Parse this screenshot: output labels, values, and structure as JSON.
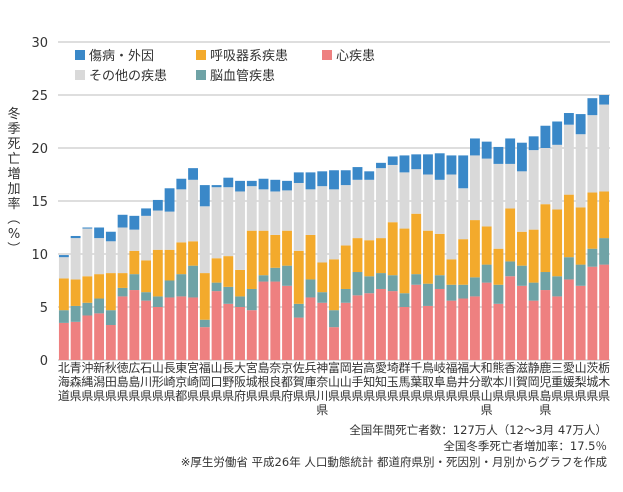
{
  "chart_data": {
    "type": "bar",
    "stacked": true,
    "ylabel": "冬季死亡増加率（%）",
    "ylim": [
      0,
      30
    ],
    "yticks": [
      0,
      5,
      10,
      15,
      20,
      25,
      30
    ],
    "grid": true,
    "legend_position": "top-left",
    "categories": [
      "北海道",
      "青森県",
      "沖縄県",
      "新潟県",
      "秋田県",
      "徳島県",
      "広島県",
      "石川県",
      "山形県",
      "長崎県",
      "東京都",
      "宮崎県",
      "福岡県",
      "山口県",
      "長野県",
      "大阪府",
      "宮城県",
      "島根県",
      "奈良県",
      "京都府",
      "佐賀県",
      "兵庫県",
      "神奈川県",
      "富山県",
      "岡山県",
      "岩手県",
      "高知県",
      "愛知県",
      "埼玉県",
      "群馬県",
      "千葉県",
      "鳥取県",
      "岐阜県",
      "福島県",
      "福井県",
      "大分県",
      "和歌山県",
      "熊本県",
      "香川県",
      "滋賀県",
      "静岡県",
      "鹿児島県",
      "三重県",
      "愛媛県",
      "山梨県",
      "茨城県",
      "栃木県"
    ],
    "series": [
      {
        "name": "心疾患",
        "color": "#ee8080",
        "values": [
          3.5,
          3.6,
          4.2,
          4.4,
          3.3,
          6.0,
          6.6,
          5.6,
          5.0,
          5.9,
          6.0,
          5.9,
          3.1,
          6.5,
          5.3,
          5.0,
          4.7,
          7.4,
          7.4,
          7.0,
          4.0,
          5.9,
          5.4,
          3.1,
          5.4,
          6.1,
          6.3,
          6.7,
          6.5,
          5.0,
          7.1,
          5.1,
          6.7,
          5.6,
          5.8,
          6.0,
          7.3,
          5.3,
          7.9,
          7.0,
          5.6,
          6.6,
          6.0,
          7.6,
          7.0,
          8.8,
          9.0
        ]
      },
      {
        "name": "脳血管疾患",
        "color": "#6fa3a6",
        "values": [
          1.2,
          1.5,
          1.2,
          1.4,
          1.4,
          0.8,
          1.5,
          0.8,
          1.0,
          1.6,
          2.1,
          3.0,
          0.7,
          0.8,
          1.6,
          1.0,
          2.0,
          0.6,
          1.3,
          1.9,
          1.3,
          1.7,
          1.0,
          1.6,
          1.3,
          2.2,
          1.6,
          1.5,
          1.5,
          1.3,
          1.0,
          2.1,
          1.3,
          1.5,
          1.3,
          1.8,
          1.7,
          1.8,
          1.4,
          1.9,
          1.7,
          1.7,
          1.9,
          2.1,
          2.0,
          1.7,
          2.5
        ]
      },
      {
        "name": "呼吸器系疾患",
        "color": "#f3aa2c",
        "values": [
          3.0,
          2.5,
          2.5,
          2.3,
          3.5,
          1.4,
          2.2,
          3.0,
          4.4,
          2.9,
          3.0,
          2.3,
          4.4,
          2.3,
          2.9,
          2.5,
          5.5,
          4.2,
          3.1,
          3.3,
          5.0,
          4.2,
          2.8,
          4.8,
          4.1,
          3.2,
          3.4,
          3.3,
          5.0,
          6.1,
          5.7,
          5.0,
          3.9,
          2.4,
          4.3,
          5.4,
          3.6,
          3.4,
          5.0,
          3.2,
          5.0,
          6.4,
          6.3,
          5.9,
          5.4,
          5.3,
          4.4
        ]
      },
      {
        "name": "その他の疾患",
        "color": "#d9d9d9",
        "values": [
          2.0,
          3.9,
          4.5,
          3.4,
          3.0,
          4.3,
          2.0,
          4.2,
          3.7,
          3.6,
          5.0,
          5.8,
          6.3,
          6.7,
          6.5,
          7.4,
          4.2,
          3.9,
          4.1,
          3.8,
          6.4,
          4.3,
          7.2,
          6.6,
          5.7,
          5.5,
          5.7,
          6.6,
          5.4,
          5.3,
          4.2,
          5.3,
          5.1,
          8.0,
          4.8,
          6.1,
          6.4,
          8.0,
          4.2,
          5.7,
          7.5,
          5.3,
          6.1,
          6.6,
          6.9,
          7.3,
          8.2
        ]
      },
      {
        "name": "傷病・外因",
        "color": "#3a88c8",
        "values": [
          0.2,
          0.2,
          0.1,
          1.0,
          0.9,
          1.2,
          1.3,
          0.7,
          1.0,
          2.2,
          1.0,
          1.1,
          2.0,
          0.2,
          0.9,
          1.0,
          0.5,
          1.0,
          1.1,
          0.9,
          1.0,
          1.6,
          1.4,
          1.8,
          1.4,
          1.2,
          0.8,
          0.5,
          0.8,
          1.6,
          1.4,
          1.9,
          2.5,
          1.8,
          3.1,
          1.6,
          1.6,
          1.6,
          2.4,
          2.7,
          1.3,
          2.1,
          2.2,
          1.1,
          1.9,
          1.6,
          0.9
        ]
      }
    ]
  },
  "legend": [
    {
      "label": "傷病・外因",
      "color": "#3a88c8"
    },
    {
      "label": "呼吸器系疾患",
      "color": "#f3aa2c"
    },
    {
      "label": "心疾患",
      "color": "#ee8080"
    },
    {
      "label": "その他の疾患",
      "color": "#d9d9d9"
    },
    {
      "label": "脳血管疾患",
      "color": "#6fa3a6"
    }
  ],
  "notes": {
    "line1": "全国年間死亡者数：127万人（12〜3月 47万人）",
    "line2": "全国冬季死亡者増加率：17.5％",
    "line3": "※厚生労働省 平成26年 人口動態統計 都道府県別・死因別・月別からグラフを作成"
  }
}
